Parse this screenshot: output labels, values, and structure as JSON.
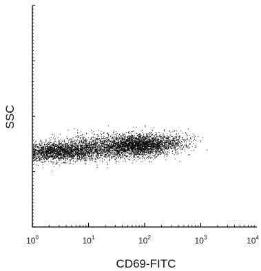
{
  "chart_data": {
    "type": "scatter",
    "title": "",
    "xlabel": "CD69-FITC",
    "ylabel": "SSC",
    "xscale": "log",
    "xlim": [
      1,
      10000
    ],
    "ylim": [
      0,
      1024
    ],
    "grid": false,
    "legend": "none",
    "x_ticks": [
      {
        "base": "10",
        "exp": "0"
      },
      {
        "base": "10",
        "exp": "1"
      },
      {
        "base": "10",
        "exp": "2"
      },
      {
        "base": "10",
        "exp": "3"
      },
      {
        "base": "10",
        "exp": "4"
      }
    ],
    "point_color": "#000000",
    "series": [
      {
        "clusters": [
          {
            "x_center": 3.5,
            "y_center": 350,
            "x_spread_log": 0.35,
            "y_spread": 22,
            "count": 1800
          },
          {
            "x_center": 80,
            "y_center": 380,
            "x_spread_log": 0.28,
            "y_spread": 25,
            "count": 2200
          },
          {
            "x_center": 20,
            "y_center": 370,
            "x_spread_log": 0.45,
            "y_spread": 28,
            "count": 1500
          },
          {
            "x_center": 300,
            "y_center": 395,
            "x_spread_log": 0.2,
            "y_spread": 22,
            "count": 350
          },
          {
            "x_center": 1.6,
            "y_center": 345,
            "x_spread_log": 0.15,
            "y_spread": 20,
            "count": 300
          }
        ],
        "x_max": 1800
      }
    ]
  }
}
